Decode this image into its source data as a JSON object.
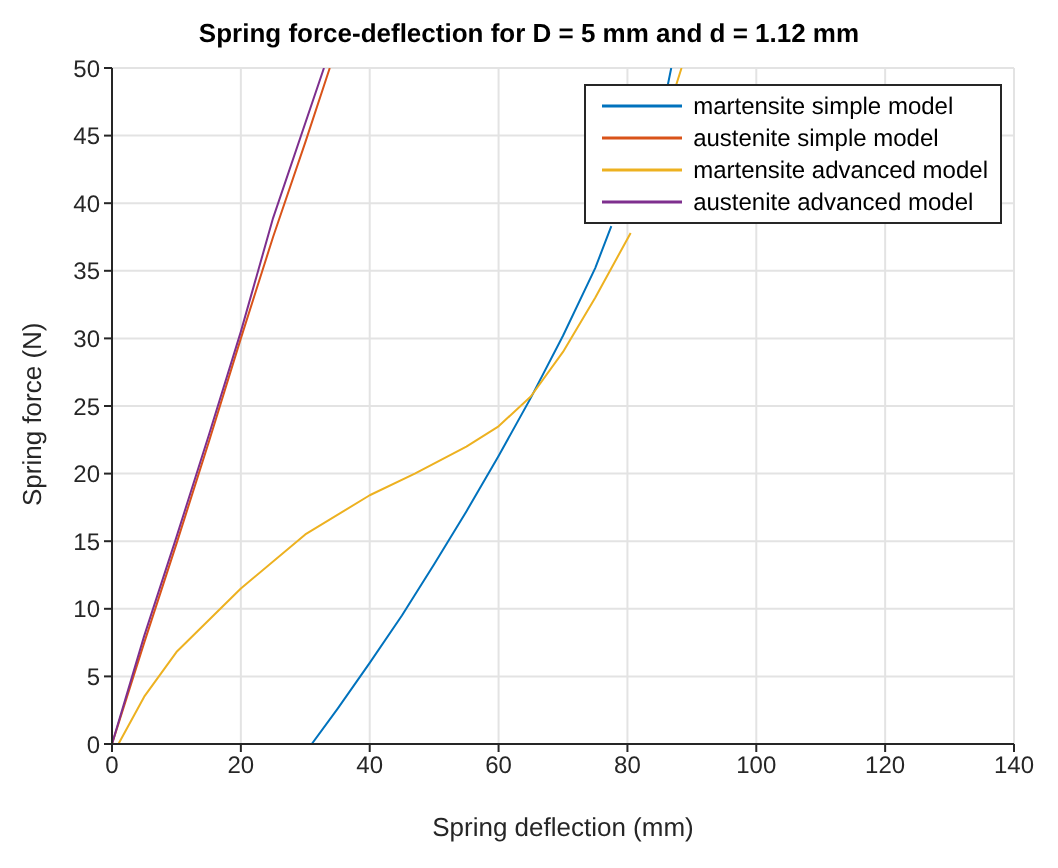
{
  "chart_data": {
    "type": "line",
    "title": "Spring force-deflection for D = 5 mm and d = 1.12 mm",
    "xlabel": "Spring deflection (mm)",
    "ylabel": "Spring force (N)",
    "xlim": [
      0,
      140
    ],
    "xticks": [
      0,
      20,
      40,
      60,
      80,
      100,
      120,
      140
    ],
    "ylim": [
      0,
      50
    ],
    "yticks": [
      0,
      5,
      10,
      15,
      20,
      25,
      30,
      35,
      40,
      45,
      50
    ],
    "grid": true,
    "legend": "top right",
    "marker": "none",
    "line_style": "solid",
    "series": [
      {
        "name": "martensite simple model",
        "color": "#0072bd",
        "x": [
          31,
          35,
          40,
          45,
          50,
          55,
          60,
          65,
          70,
          75,
          77.5,
          82,
          86.2,
          86.8
        ],
        "values": [
          0,
          2.6,
          6,
          9.5,
          13.3,
          17.2,
          21.3,
          25.6,
          30.2,
          35.2,
          38.3,
          null,
          48.6,
          50
        ]
      },
      {
        "name": "austenite simple model",
        "color": "#d95319",
        "x": [
          0,
          5,
          10,
          15,
          20,
          25,
          30,
          33.8
        ],
        "values": [
          0,
          7.5,
          14.8,
          22.3,
          30,
          37.5,
          44.5,
          50
        ]
      },
      {
        "name": "martensite advanced model",
        "color": "#edb120",
        "x": [
          1,
          5,
          10,
          20,
          30,
          40,
          47,
          55,
          60,
          65,
          70,
          75,
          80.5,
          84,
          87.6,
          88.4
        ],
        "values": [
          0,
          3.5,
          6.8,
          11.5,
          15.5,
          18.4,
          20,
          22,
          23.5,
          25.7,
          29,
          33,
          37.8,
          null,
          48.8,
          50
        ]
      },
      {
        "name": "austenite advanced model",
        "color": "#7e2f8e",
        "x": [
          0,
          5,
          10,
          15,
          20,
          25,
          32.9
        ],
        "values": [
          0,
          8,
          15.3,
          22.8,
          30.5,
          38.9,
          50
        ]
      }
    ]
  }
}
